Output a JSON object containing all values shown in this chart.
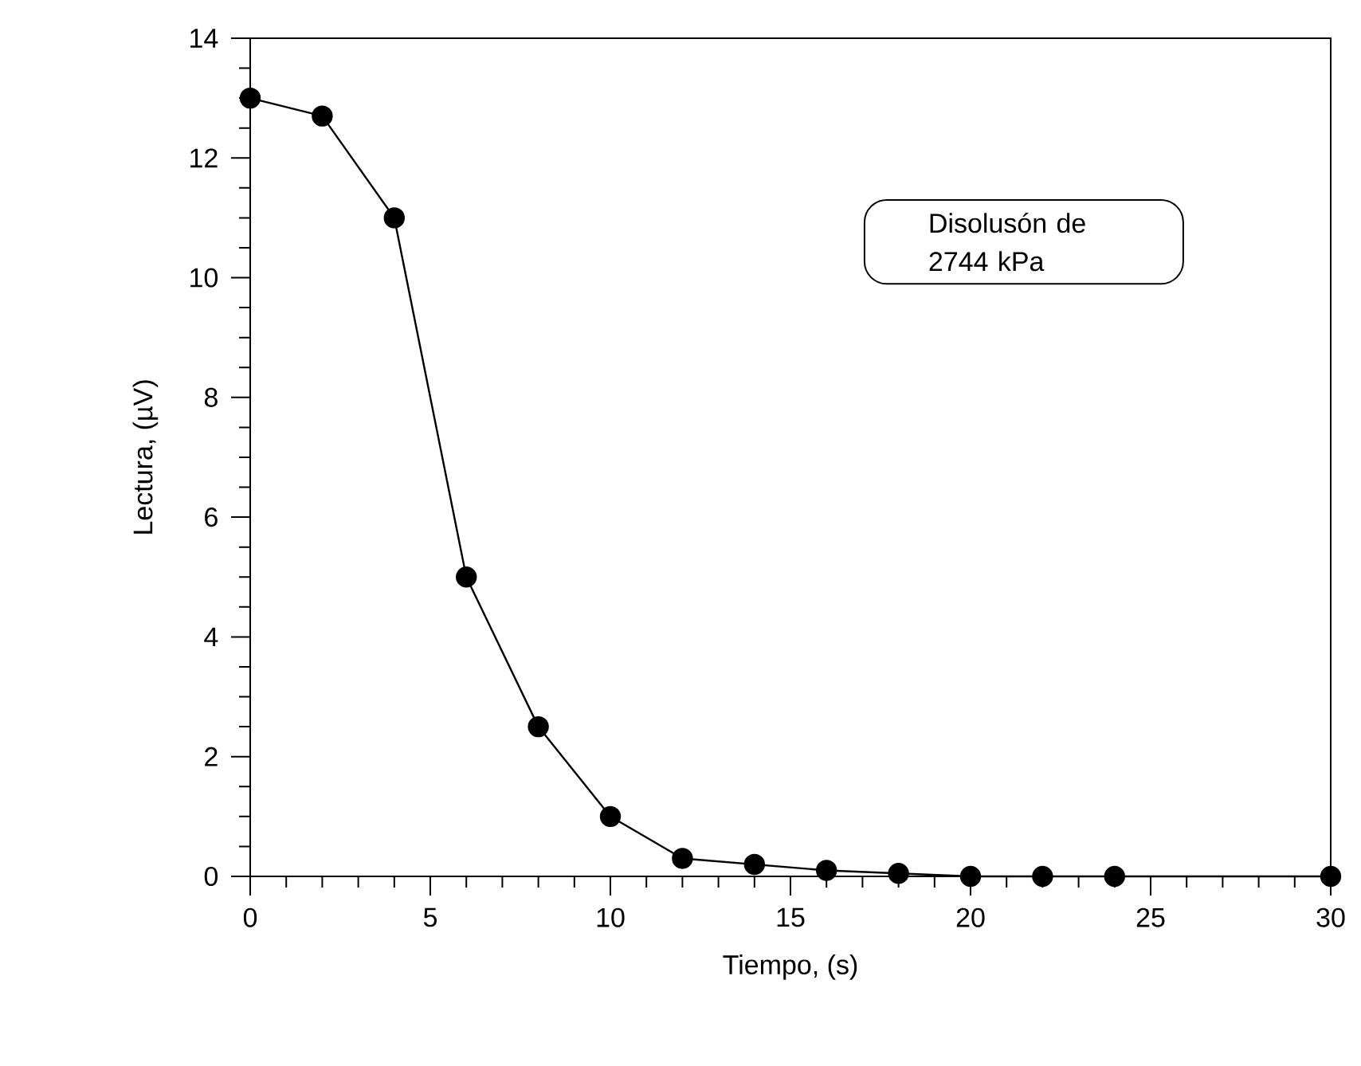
{
  "chart_data": {
    "type": "line",
    "xlabel": "Tiempo, (s)",
    "ylabel": "Lectura, (µV)",
    "x": [
      0,
      2,
      4,
      6,
      8,
      10,
      12,
      14,
      16,
      18,
      20,
      22,
      24,
      30
    ],
    "series": [
      {
        "color": "#000000",
        "values": [
          13,
          12.7,
          11,
          5,
          2.5,
          1,
          0.3,
          0.2,
          0.1,
          0.05,
          0,
          0,
          0,
          0
        ]
      }
    ],
    "marker": "circle",
    "line_style": "solid",
    "xlim": [
      0,
      30
    ],
    "ylim": [
      0,
      14
    ],
    "xticks": [
      0,
      5,
      10,
      15,
      20,
      25,
      30
    ],
    "yticks": [
      0,
      2,
      4,
      6,
      8,
      10,
      12,
      14
    ],
    "annotations": [
      "Disolusón de 2744 kPa"
    ]
  }
}
